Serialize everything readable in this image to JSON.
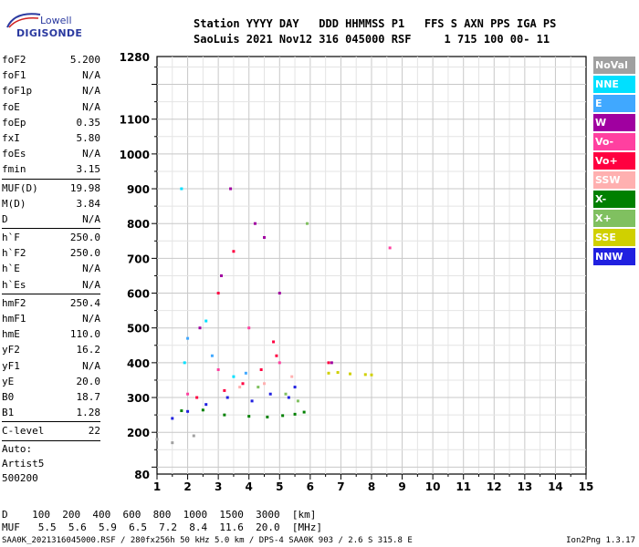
{
  "logo": {
    "line1": "Lowell",
    "line2": "DIGISONDE"
  },
  "header": {
    "line1": "Station YYYY DAY   DDD HHMMSS P1   FFS S AXN PPS IGA PS",
    "line2": "SaoLuis 2021 Nov12 316 045000 RSF     1 715 100 00- 11"
  },
  "params": [
    {
      "name": "foF2",
      "value": "5.200"
    },
    {
      "name": "foF1",
      "value": "N/A"
    },
    {
      "name": "foF1p",
      "value": "N/A"
    },
    {
      "name": "foE",
      "value": "N/A"
    },
    {
      "name": "foEp",
      "value": "0.35"
    },
    {
      "name": "fxI",
      "value": "5.80"
    },
    {
      "name": "foEs",
      "value": "N/A"
    },
    {
      "name": "fmin",
      "value": "3.15"
    },
    {
      "sep": true
    },
    {
      "name": "MUF(D)",
      "value": "19.98"
    },
    {
      "name": "M(D)",
      "value": "3.84"
    },
    {
      "name": "D",
      "value": "N/A"
    },
    {
      "sep": true
    },
    {
      "name": "h`F",
      "value": "250.0"
    },
    {
      "name": "h`F2",
      "value": "250.0"
    },
    {
      "name": "h`E",
      "value": "N/A"
    },
    {
      "name": "h`Es",
      "value": "N/A"
    },
    {
      "sep": true
    },
    {
      "name": "hmF2",
      "value": "250.4"
    },
    {
      "name": "hmF1",
      "value": "N/A"
    },
    {
      "name": "hmE",
      "value": "110.0"
    },
    {
      "name": "yF2",
      "value": "16.2"
    },
    {
      "name": "yF1",
      "value": "N/A"
    },
    {
      "name": "yE",
      "value": "20.0"
    },
    {
      "name": "B0",
      "value": "18.7"
    },
    {
      "name": "B1",
      "value": "1.28"
    },
    {
      "sep": true
    },
    {
      "name": "C-level",
      "value": "22"
    },
    {
      "sep": true
    },
    {
      "text": "Auto:"
    },
    {
      "text": "Artist5"
    },
    {
      "text": "500200"
    }
  ],
  "legend": [
    {
      "label": "NoVal",
      "color": "#a0a0a0"
    },
    {
      "label": "NNE",
      "color": "#00e0ff"
    },
    {
      "label": "E",
      "color": "#40a8ff"
    },
    {
      "label": "W",
      "color": "#a000a0"
    },
    {
      "label": "Vo-",
      "color": "#ff40a0"
    },
    {
      "label": "Vo+",
      "color": "#ff0040"
    },
    {
      "label": "SSW",
      "color": "#ffb0b0"
    },
    {
      "label": "X-",
      "color": "#008000"
    },
    {
      "label": "X+",
      "color": "#80c060"
    },
    {
      "label": "SSE",
      "color": "#d0d000"
    },
    {
      "label": "NNW",
      "color": "#2020e0"
    }
  ],
  "chart_data": {
    "type": "scatter",
    "x_ticks": [
      "1",
      "2",
      "3",
      "4",
      "5",
      "6",
      "7",
      "8",
      "9",
      "10",
      "11",
      "12",
      "13",
      "14",
      "15"
    ],
    "y_ticks": [
      "80",
      "200",
      "300",
      "400",
      "500",
      "600",
      "700",
      "800",
      "900",
      "1000",
      "1100",
      "1280"
    ],
    "xlim": [
      1,
      15
    ],
    "ylim": [
      80,
      1280
    ],
    "grid": true,
    "series": [
      {
        "name": "X-",
        "color": "#008000",
        "points": [
          [
            1.8,
            262
          ],
          [
            2.5,
            264
          ],
          [
            3.2,
            250
          ],
          [
            4.0,
            246
          ],
          [
            4.6,
            244
          ],
          [
            5.1,
            248
          ],
          [
            5.5,
            252
          ],
          [
            5.8,
            258
          ]
        ]
      },
      {
        "name": "Vo+",
        "color": "#ff0040",
        "points": [
          [
            2.3,
            300
          ],
          [
            3.2,
            320
          ],
          [
            3.8,
            340
          ],
          [
            4.4,
            380
          ],
          [
            4.9,
            420
          ],
          [
            3.0,
            600
          ],
          [
            3.5,
            720
          ],
          [
            4.8,
            460
          ],
          [
            6.6,
            400
          ]
        ]
      },
      {
        "name": "SSE",
        "color": "#d0d000",
        "points": [
          [
            6.6,
            370
          ],
          [
            6.9,
            372
          ],
          [
            7.3,
            368
          ],
          [
            7.8,
            366
          ],
          [
            8.0,
            365
          ]
        ]
      },
      {
        "name": "NNW",
        "color": "#2020e0",
        "points": [
          [
            1.5,
            240
          ],
          [
            2.0,
            260
          ],
          [
            2.6,
            280
          ],
          [
            3.3,
            300
          ],
          [
            4.1,
            290
          ],
          [
            4.7,
            310
          ],
          [
            5.3,
            300
          ],
          [
            5.5,
            330
          ]
        ]
      },
      {
        "name": "W",
        "color": "#a000a0",
        "points": [
          [
            2.4,
            500
          ],
          [
            3.1,
            650
          ],
          [
            3.4,
            900
          ],
          [
            4.2,
            800
          ],
          [
            4.5,
            760
          ],
          [
            5.0,
            600
          ],
          [
            6.7,
            400
          ]
        ]
      },
      {
        "name": "Vo-",
        "color": "#ff40a0",
        "points": [
          [
            2.0,
            310
          ],
          [
            3.0,
            380
          ],
          [
            4.0,
            500
          ],
          [
            5.0,
            400
          ],
          [
            8.6,
            730
          ]
        ]
      },
      {
        "name": "NNE",
        "color": "#00e0ff",
        "points": [
          [
            1.9,
            400
          ],
          [
            2.6,
            520
          ],
          [
            3.5,
            360
          ],
          [
            1.8,
            900
          ]
        ]
      },
      {
        "name": "E",
        "color": "#40a8ff",
        "points": [
          [
            2.0,
            470
          ],
          [
            2.8,
            420
          ],
          [
            3.9,
            370
          ]
        ]
      },
      {
        "name": "X+",
        "color": "#80c060",
        "points": [
          [
            4.3,
            330
          ],
          [
            5.2,
            310
          ],
          [
            5.6,
            290
          ],
          [
            5.9,
            800
          ]
        ]
      },
      {
        "name": "SSW",
        "color": "#ffb0b0",
        "points": [
          [
            3.7,
            330
          ],
          [
            4.5,
            340
          ],
          [
            5.4,
            360
          ]
        ]
      },
      {
        "name": "NoVal",
        "color": "#a0a0a0",
        "points": [
          [
            1.0,
            180
          ],
          [
            1.5,
            170
          ],
          [
            2.2,
            190
          ]
        ]
      }
    ]
  },
  "footer": {
    "line1": "D    100  200  400  600  800  1000  1500  3000  [km]",
    "line2": "MUF   5.5  5.6  5.9  6.5  7.2  8.4  11.6  20.0  [MHz]"
  },
  "file_line": "SAA0K_2021316045000.RSF / 280fx256h 50 kHz 5.0 km / DPS-4 SAA0K 903 / 2.6 S 315.8 E",
  "version": "Ion2Png 1.3.17"
}
